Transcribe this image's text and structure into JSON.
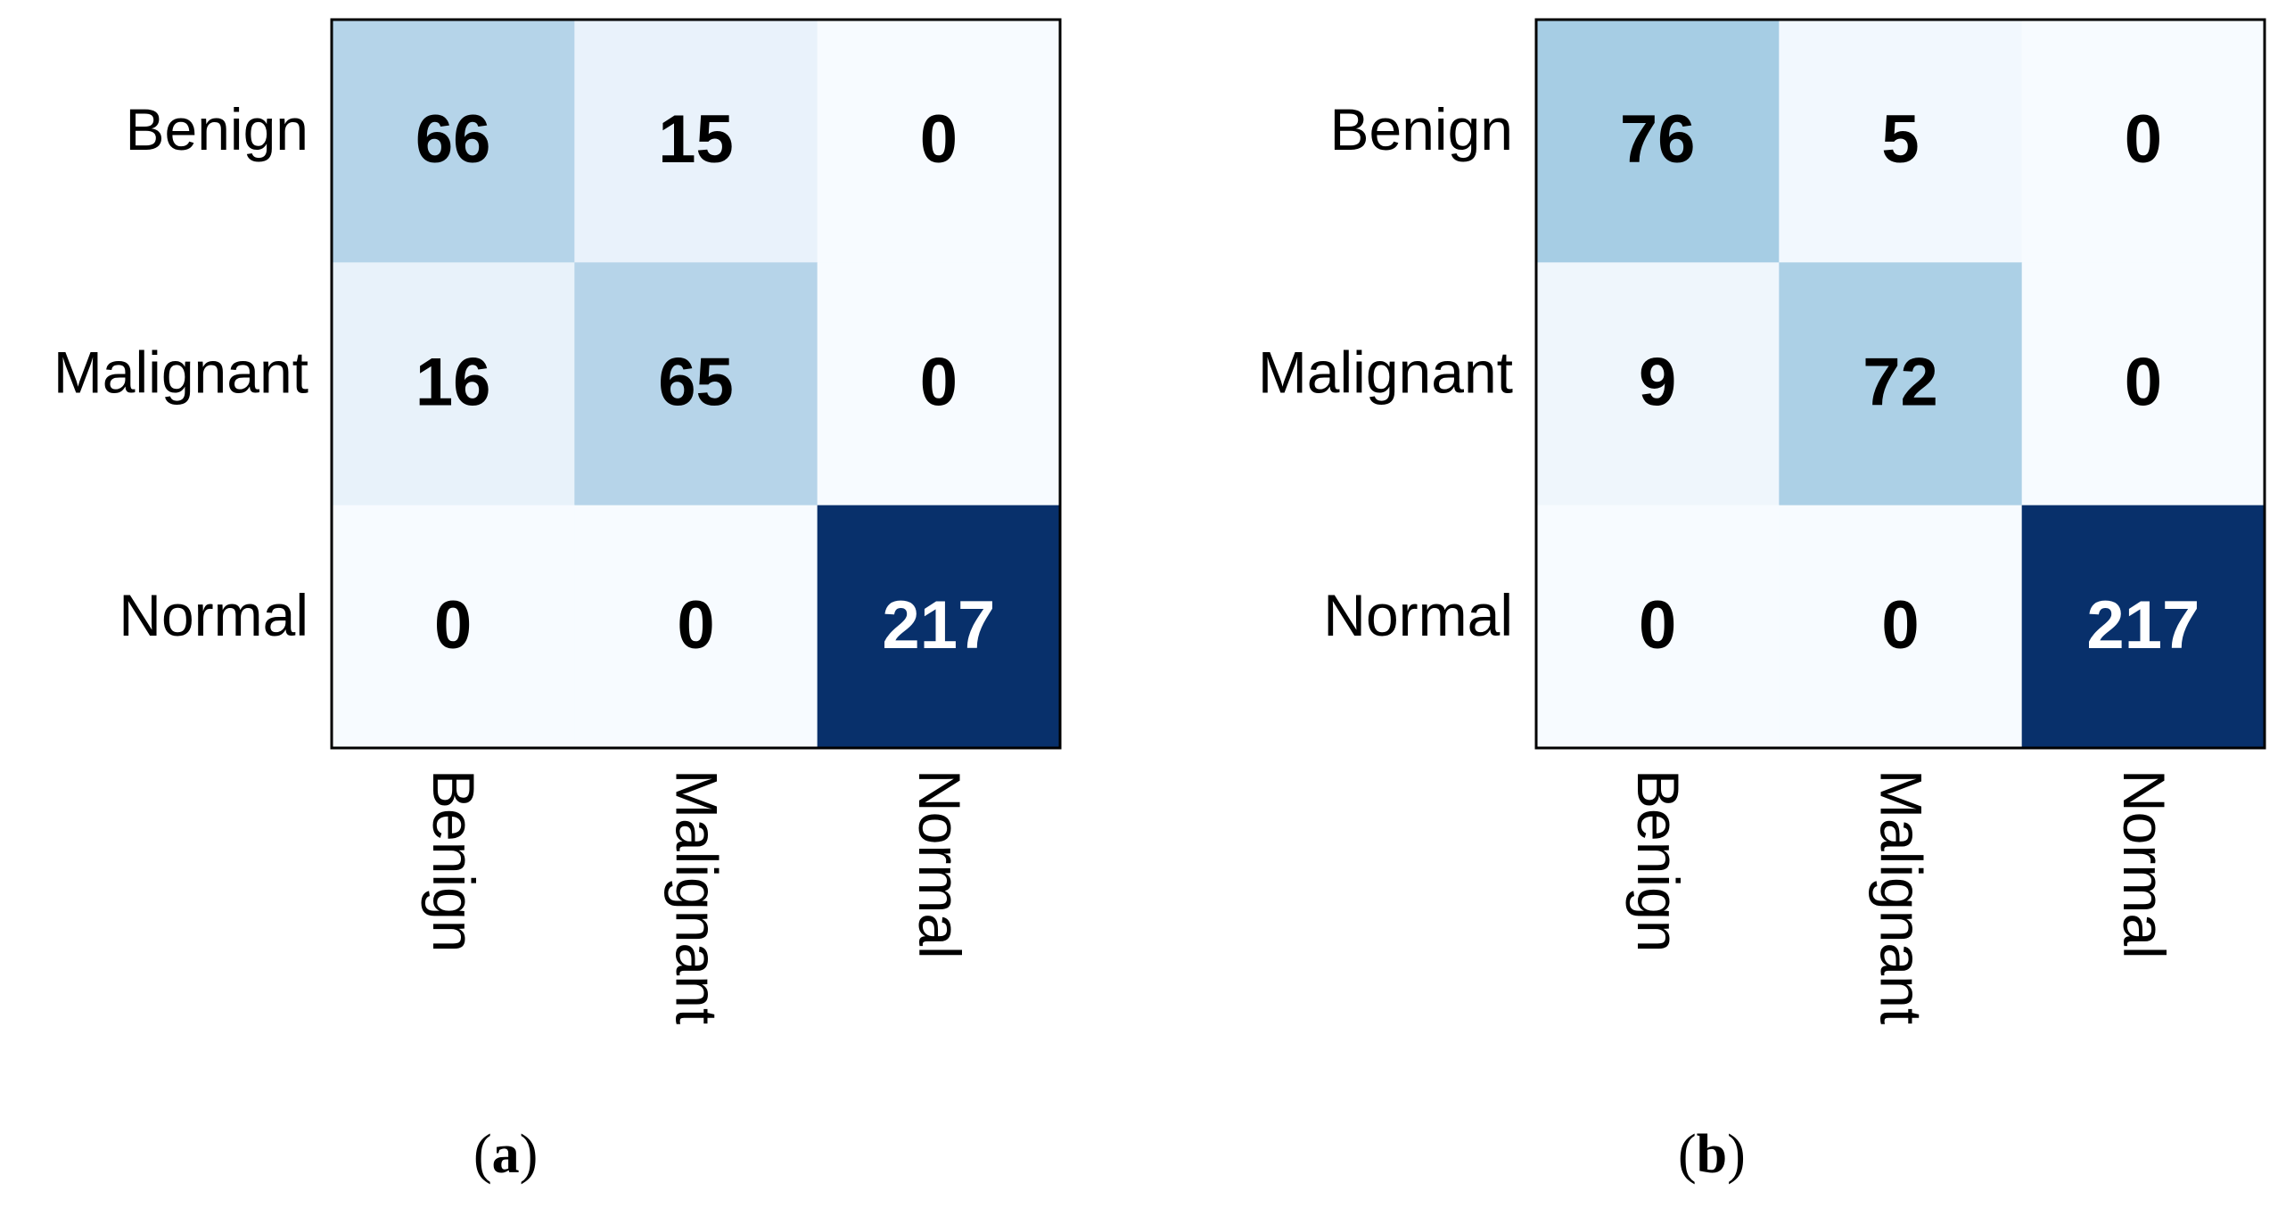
{
  "chart_data": [
    {
      "type": "heatmap",
      "panel_label": "a",
      "row_labels": [
        "Benign",
        "Malignant",
        "Normal"
      ],
      "col_labels": [
        "Benign",
        "Malignant",
        "Normal"
      ],
      "values": [
        [
          66,
          15,
          0
        ],
        [
          16,
          65,
          0
        ],
        [
          0,
          0,
          217
        ]
      ],
      "colormap": "Blues",
      "value_range": [
        0,
        217
      ]
    },
    {
      "type": "heatmap",
      "panel_label": "b",
      "row_labels": [
        "Benign",
        "Malignant",
        "Normal"
      ],
      "col_labels": [
        "Benign",
        "Malignant",
        "Normal"
      ],
      "values": [
        [
          76,
          5,
          0
        ],
        [
          9,
          72,
          0
        ],
        [
          0,
          0,
          217
        ]
      ],
      "colormap": "Blues",
      "value_range": [
        0,
        217
      ]
    }
  ],
  "captions": [
    {
      "open": "(",
      "letter": "a",
      "close": ")"
    },
    {
      "open": "(",
      "letter": "b",
      "close": ")"
    }
  ]
}
